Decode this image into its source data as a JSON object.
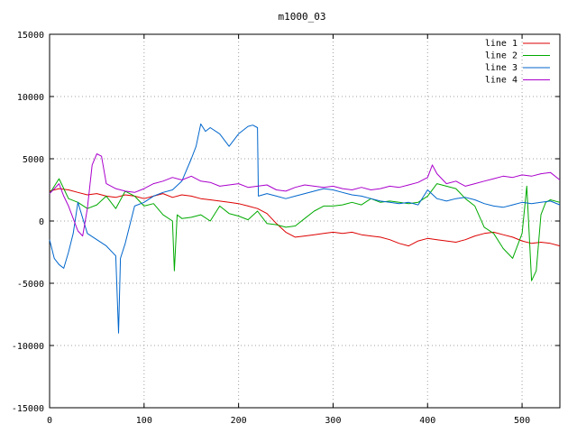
{
  "chart_data": {
    "type": "line",
    "title": "m1000_03",
    "xlabel": "",
    "ylabel": "",
    "xlim": [
      0,
      540
    ],
    "ylim": [
      -15000,
      15000
    ],
    "x_ticks": [
      "0",
      "100",
      "200",
      "300",
      "400",
      "500"
    ],
    "y_ticks": [
      "15000",
      "10000",
      "5000",
      "0",
      "-5000",
      "-10000",
      "-15000"
    ],
    "grid": true,
    "legend_position": "top-right",
    "series": [
      {
        "name": "line 1",
        "color": "#dd0000",
        "x": [
          0,
          10,
          20,
          30,
          40,
          50,
          60,
          70,
          80,
          90,
          100,
          110,
          120,
          130,
          140,
          150,
          160,
          170,
          180,
          190,
          200,
          210,
          220,
          230,
          240,
          250,
          260,
          270,
          280,
          290,
          300,
          310,
          320,
          330,
          340,
          350,
          360,
          370,
          380,
          390,
          400,
          410,
          420,
          430,
          440,
          450,
          460,
          470,
          480,
          490,
          500,
          510,
          520,
          530,
          540
        ],
        "y": [
          2400,
          2600,
          2500,
          2300,
          2100,
          2200,
          2000,
          1900,
          2100,
          2000,
          1800,
          2000,
          2200,
          1900,
          2100,
          2000,
          1800,
          1700,
          1600,
          1500,
          1400,
          1200,
          1000,
          600,
          -200,
          -900,
          -1300,
          -1200,
          -1100,
          -1000,
          -900,
          -1000,
          -900,
          -1100,
          -1200,
          -1300,
          -1500,
          -1800,
          -2000,
          -1600,
          -1400,
          -1500,
          -1600,
          -1700,
          -1500,
          -1200,
          -1000,
          -900,
          -1100,
          -1300,
          -1600,
          -1800,
          -1700,
          -1800,
          -2000
        ]
      },
      {
        "name": "line 2",
        "color": "#00aa00",
        "x": [
          0,
          10,
          20,
          30,
          40,
          50,
          60,
          70,
          80,
          90,
          100,
          110,
          120,
          130,
          132,
          135,
          140,
          150,
          160,
          170,
          180,
          190,
          200,
          210,
          220,
          230,
          240,
          250,
          260,
          270,
          280,
          290,
          300,
          310,
          320,
          330,
          340,
          350,
          360,
          370,
          380,
          390,
          400,
          410,
          420,
          430,
          440,
          450,
          460,
          470,
          480,
          490,
          500,
          505,
          510,
          515,
          520,
          525,
          530,
          540
        ],
        "y": [
          2200,
          3400,
          1800,
          1500,
          1000,
          1300,
          2000,
          1000,
          2400,
          2000,
          1200,
          1400,
          500,
          0,
          -4000,
          500,
          200,
          300,
          500,
          0,
          1200,
          600,
          400,
          100,
          800,
          -200,
          -300,
          -500,
          -400,
          200,
          800,
          1200,
          1200,
          1300,
          1500,
          1300,
          1800,
          1500,
          1600,
          1500,
          1400,
          1500,
          2000,
          3000,
          2800,
          2600,
          1800,
          1200,
          -500,
          -1000,
          -2200,
          -3000,
          -1000,
          2800,
          -4800,
          -4000,
          500,
          1500,
          1700,
          1500
        ]
      },
      {
        "name": "line 3",
        "color": "#0066cc",
        "x": [
          0,
          5,
          10,
          15,
          20,
          25,
          30,
          40,
          50,
          60,
          70,
          73,
          75,
          80,
          90,
          100,
          110,
          120,
          130,
          140,
          150,
          155,
          160,
          165,
          170,
          180,
          190,
          200,
          210,
          215,
          220,
          221,
          230,
          240,
          250,
          260,
          270,
          280,
          290,
          300,
          310,
          320,
          330,
          340,
          350,
          360,
          370,
          380,
          390,
          400,
          410,
          420,
          430,
          440,
          450,
          460,
          470,
          480,
          490,
          500,
          510,
          520,
          530,
          540
        ],
        "y": [
          -1500,
          -3000,
          -3500,
          -3800,
          -2500,
          -1000,
          1500,
          -1000,
          -1500,
          -2000,
          -2800,
          -9000,
          -3000,
          -1800,
          1200,
          1500,
          2000,
          2300,
          2500,
          3200,
          5000,
          6000,
          7800,
          7200,
          7500,
          7000,
          6000,
          7000,
          7600,
          7700,
          7500,
          2000,
          2200,
          2000,
          1800,
          2000,
          2200,
          2400,
          2600,
          2500,
          2300,
          2100,
          2000,
          1800,
          1600,
          1500,
          1400,
          1500,
          1300,
          2500,
          1800,
          1600,
          1800,
          1900,
          1700,
          1400,
          1200,
          1100,
          1300,
          1500,
          1400,
          1500,
          1600,
          1300
        ]
      },
      {
        "name": "line 4",
        "color": "#aa00cc",
        "x": [
          0,
          10,
          15,
          20,
          30,
          35,
          40,
          45,
          50,
          55,
          60,
          70,
          80,
          90,
          100,
          110,
          120,
          130,
          140,
          150,
          160,
          170,
          180,
          190,
          200,
          210,
          220,
          230,
          240,
          250,
          260,
          270,
          280,
          290,
          300,
          310,
          320,
          330,
          340,
          350,
          360,
          370,
          380,
          390,
          400,
          405,
          410,
          420,
          430,
          440,
          450,
          460,
          470,
          480,
          490,
          500,
          510,
          520,
          530,
          540
        ],
        "y": [
          2200,
          3000,
          2000,
          1200,
          -800,
          -1200,
          1000,
          4500,
          5400,
          5200,
          3000,
          2600,
          2400,
          2300,
          2600,
          3000,
          3200,
          3500,
          3300,
          3600,
          3200,
          3100,
          2800,
          2900,
          3000,
          2700,
          2800,
          2900,
          2500,
          2400,
          2700,
          2900,
          2800,
          2700,
          2800,
          2600,
          2500,
          2700,
          2500,
          2600,
          2800,
          2700,
          2900,
          3100,
          3500,
          4500,
          3800,
          3000,
          3200,
          2800,
          3000,
          3200,
          3400,
          3600,
          3500,
          3700,
          3600,
          3800,
          3900,
          3300
        ]
      }
    ]
  }
}
